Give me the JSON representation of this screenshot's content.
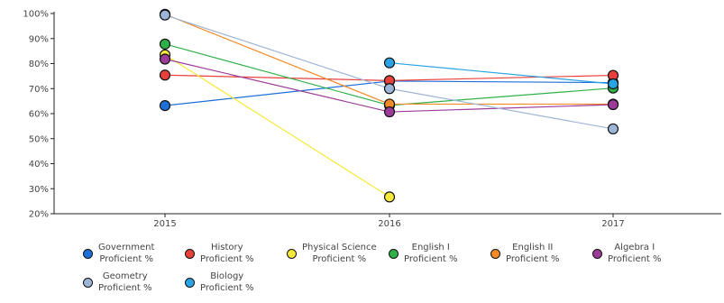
{
  "chart_data": {
    "type": "line",
    "title": "",
    "xlabel": "",
    "ylabel": "",
    "categories": [
      "2015",
      "2016",
      "2017"
    ],
    "ylim": [
      20,
      100
    ],
    "yticks": [
      20,
      30,
      40,
      50,
      60,
      70,
      80,
      90,
      100
    ],
    "ytick_labels": [
      "20%",
      "30%",
      "40%",
      "50%",
      "60%",
      "70%",
      "80%",
      "90%",
      "100%"
    ],
    "grid": false,
    "legend_position": "bottom",
    "series": [
      {
        "name": "Government Proficient %",
        "color": "#1f6fd9",
        "values": [
          63.2,
          73.0,
          72.4
        ]
      },
      {
        "name": "History Proficient %",
        "color": "#e8413b",
        "values": [
          75.4,
          73.2,
          75.3
        ]
      },
      {
        "name": "Physical Science Proficient %",
        "color": "#f7e93a",
        "values": [
          83.5,
          26.7,
          null
        ]
      },
      {
        "name": "English I Proficient %",
        "color": "#2fb14a",
        "values": [
          87.8,
          63.3,
          70.2
        ]
      },
      {
        "name": "English II Proficient %",
        "color": "#f48a28",
        "values": [
          99.7,
          63.8,
          63.8
        ]
      },
      {
        "name": "Algebra I Proficient %",
        "color": "#9c3c98",
        "values": [
          81.8,
          60.7,
          63.6
        ]
      },
      {
        "name": "Geometry Proficient %",
        "color": "#9db5d6",
        "values": [
          99.4,
          70.0,
          53.9
        ]
      },
      {
        "name": "Biology Proficient %",
        "color": "#2aa3e4",
        "values": [
          null,
          80.3,
          71.9
        ]
      }
    ]
  },
  "legend": {
    "items": [
      {
        "line1": "Government",
        "line2": "Proficient %"
      },
      {
        "line1": "History",
        "line2": "Proficient %"
      },
      {
        "line1": "Physical Science",
        "line2": "Proficient %"
      },
      {
        "line1": "English I",
        "line2": "Proficient %"
      },
      {
        "line1": "English II",
        "line2": "Proficient %"
      },
      {
        "line1": "Algebra I",
        "line2": "Proficient %"
      },
      {
        "line1": "Geometry",
        "line2": "Proficient %"
      },
      {
        "line1": "Biology",
        "line2": "Proficient %"
      }
    ]
  }
}
